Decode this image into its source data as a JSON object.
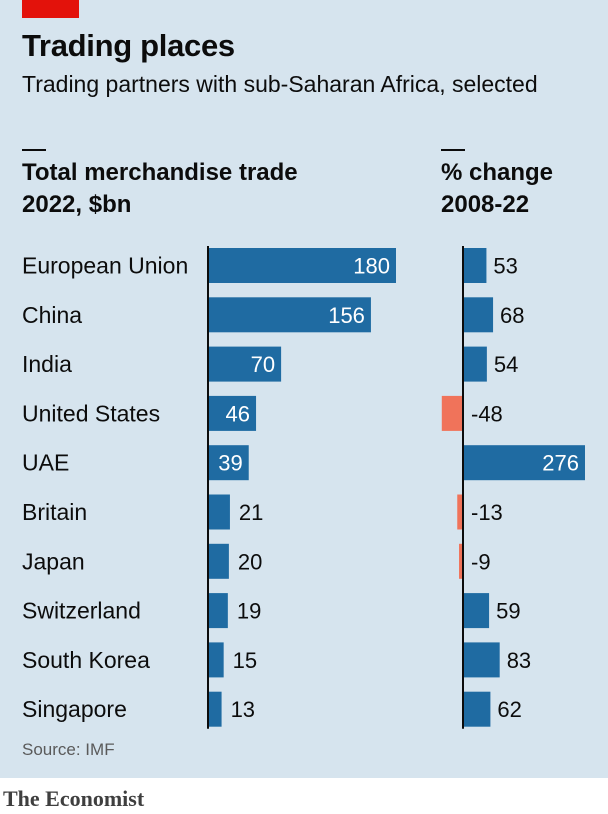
{
  "header": {
    "title": "Trading places",
    "subtitle": "Trading partners with sub-Saharan Africa, selected"
  },
  "columns": {
    "left_line1": "Total merchandise trade",
    "left_line2": "2022, $bn",
    "right_line1": "% change",
    "right_line2": "2008-22"
  },
  "footer": {
    "source": "Source: IMF",
    "brand": "The Economist"
  },
  "colors": {
    "positive": "#1f6ba2",
    "negative": "#f0735a",
    "axis": "#0c0c0c"
  },
  "chart_data": [
    {
      "type": "bar",
      "orientation": "horizontal",
      "title": "Total merchandise trade 2022, $bn",
      "categories": [
        "European Union",
        "China",
        "India",
        "United States",
        "UAE",
        "Britain",
        "Japan",
        "Switzerland",
        "South Korea",
        "Singapore"
      ],
      "values": [
        180,
        156,
        70,
        46,
        39,
        21,
        20,
        19,
        15,
        13
      ]
    },
    {
      "type": "bar",
      "orientation": "horizontal",
      "title": "% change 2008-22",
      "categories": [
        "European Union",
        "China",
        "India",
        "United States",
        "UAE",
        "Britain",
        "Japan",
        "Switzerland",
        "South Korea",
        "Singapore"
      ],
      "values": [
        53,
        68,
        54,
        -48,
        276,
        -13,
        -9,
        59,
        83,
        62
      ]
    }
  ]
}
